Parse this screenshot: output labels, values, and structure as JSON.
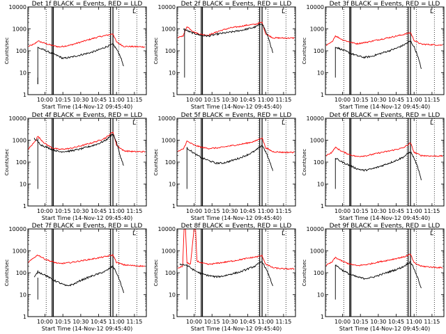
{
  "figure": {
    "ylabel": "Counts/sec",
    "xlabel": "Start Time (14-Nov-12 09:45:40)",
    "legend_marker": "L",
    "colors": {
      "events": "#000000",
      "lld": "#ff0000"
    }
  },
  "panel_titles": [
    "Det 1f  BLACK = Events,  RED = LLD",
    "Det 2f  BLACK = Events,  RED = LLD",
    "Det 3f  BLACK = Events,  RED = LLD",
    "Det 4f  BLACK = Events,  RED = LLD",
    "Det 5f  BLACK = Events,  RED = LLD",
    "Det 6f  BLACK = Events,  RED = LLD",
    "Det 7f  BLACK = Events,  RED = LLD",
    "Det 8f  BLACK = Events,  RED = LLD",
    "Det 9f  BLACK = Events,  RED = LLD"
  ],
  "chart_data": {
    "type": "line",
    "layout": "3x3 grid",
    "x_ticks": [
      "10:00",
      "10:15",
      "10:30",
      "10:45",
      "11:00",
      "11:15"
    ],
    "xlim": [
      "09:45:40",
      "11:25"
    ],
    "y_scale": "log",
    "ylim": [
      1,
      10000
    ],
    "y_ticks": [
      "1",
      "10",
      "100",
      "1000",
      "10000"
    ],
    "solid_vlines": [
      "10:06",
      "10:07",
      "10:55",
      "10:57"
    ],
    "dotted_vlines": [
      "10:01",
      "10:54",
      "11:02",
      "11:17"
    ],
    "series_names": [
      "Events",
      "LLD"
    ],
    "panels": [
      {
        "title": "Det 1f",
        "events_start": "09:54",
        "events_end": "11:06",
        "events": [
          [
            9.9,
            3
          ],
          [
            9.9,
            140
          ],
          [
            10.0,
            105
          ],
          [
            10.1,
            75
          ],
          [
            10.2,
            55
          ],
          [
            10.25,
            45
          ],
          [
            10.35,
            50
          ],
          [
            10.5,
            65
          ],
          [
            10.65,
            85
          ],
          [
            10.75,
            110
          ],
          [
            10.85,
            150
          ],
          [
            10.95,
            200
          ],
          [
            11.0,
            120
          ],
          [
            11.05,
            60
          ],
          [
            11.1,
            20
          ]
        ],
        "lld": [
          [
            9.77,
            160
          ],
          [
            9.85,
            200
          ],
          [
            9.9,
            280
          ],
          [
            10.0,
            220
          ],
          [
            10.1,
            175
          ],
          [
            10.2,
            150
          ],
          [
            10.35,
            180
          ],
          [
            10.5,
            250
          ],
          [
            10.65,
            350
          ],
          [
            10.75,
            430
          ],
          [
            10.85,
            500
          ],
          [
            10.95,
            600
          ],
          [
            11.0,
            250
          ],
          [
            11.1,
            160
          ],
          [
            11.25,
            155
          ],
          [
            11.4,
            150
          ]
        ]
      },
      {
        "title": "Det 2f",
        "events_start": "09:52",
        "events_end": "11:06",
        "events": [
          [
            9.85,
            1000
          ],
          [
            9.95,
            700
          ],
          [
            10.1,
            500
          ],
          [
            10.2,
            470
          ],
          [
            10.35,
            600
          ],
          [
            10.5,
            700
          ],
          [
            10.65,
            850
          ],
          [
            10.75,
            1000
          ],
          [
            10.85,
            1200
          ],
          [
            10.95,
            1800
          ],
          [
            11.0,
            800
          ],
          [
            11.05,
            300
          ],
          [
            11.1,
            80
          ]
        ],
        "lld": [
          [
            9.77,
            380
          ],
          [
            9.85,
            500
          ],
          [
            9.9,
            1300
          ],
          [
            10.0,
            700
          ],
          [
            10.1,
            560
          ],
          [
            10.2,
            520
          ],
          [
            10.35,
            800
          ],
          [
            10.5,
            1100
          ],
          [
            10.65,
            1300
          ],
          [
            10.75,
            1500
          ],
          [
            10.85,
            1600
          ],
          [
            10.95,
            2000
          ],
          [
            11.0,
            600
          ],
          [
            11.1,
            390
          ],
          [
            11.25,
            380
          ],
          [
            11.4,
            380
          ]
        ]
      },
      {
        "title": "Det 3f",
        "events_start": "09:54",
        "events_end": "11:06",
        "events": [
          [
            9.9,
            150
          ],
          [
            10.0,
            110
          ],
          [
            10.1,
            80
          ],
          [
            10.2,
            60
          ],
          [
            10.3,
            50
          ],
          [
            10.4,
            55
          ],
          [
            10.5,
            70
          ],
          [
            10.65,
            100
          ],
          [
            10.75,
            130
          ],
          [
            10.85,
            180
          ],
          [
            10.95,
            280
          ],
          [
            11.0,
            150
          ],
          [
            11.05,
            60
          ],
          [
            11.1,
            15
          ]
        ],
        "lld": [
          [
            9.77,
            170
          ],
          [
            9.85,
            250
          ],
          [
            9.9,
            480
          ],
          [
            10.0,
            320
          ],
          [
            10.1,
            250
          ],
          [
            10.2,
            210
          ],
          [
            10.35,
            250
          ],
          [
            10.5,
            320
          ],
          [
            10.65,
            400
          ],
          [
            10.75,
            470
          ],
          [
            10.85,
            550
          ],
          [
            10.95,
            680
          ],
          [
            11.0,
            300
          ],
          [
            11.1,
            200
          ],
          [
            11.25,
            190
          ],
          [
            11.4,
            180
          ]
        ]
      },
      {
        "title": "Det 4f",
        "events_start": "09:54",
        "events_end": "11:06",
        "events": [
          [
            9.85,
            1200
          ],
          [
            9.95,
            600
          ],
          [
            10.1,
            380
          ],
          [
            10.2,
            300
          ],
          [
            10.35,
            320
          ],
          [
            10.5,
            400
          ],
          [
            10.65,
            550
          ],
          [
            10.75,
            700
          ],
          [
            10.85,
            1000
          ],
          [
            10.95,
            2000
          ],
          [
            11.0,
            800
          ],
          [
            11.05,
            200
          ],
          [
            11.1,
            70
          ]
        ],
        "lld": [
          [
            9.77,
            400
          ],
          [
            9.85,
            800
          ],
          [
            9.9,
            1500
          ],
          [
            10.0,
            700
          ],
          [
            10.1,
            450
          ],
          [
            10.2,
            380
          ],
          [
            10.35,
            420
          ],
          [
            10.5,
            550
          ],
          [
            10.65,
            750
          ],
          [
            10.75,
            950
          ],
          [
            10.85,
            1300
          ],
          [
            10.95,
            2400
          ],
          [
            11.0,
            600
          ],
          [
            11.1,
            330
          ],
          [
            11.25,
            300
          ],
          [
            11.4,
            300
          ]
        ]
      },
      {
        "title": "Det 5f",
        "events_start": "09:54",
        "events_end": "11:06",
        "events": [
          [
            9.9,
            450
          ],
          [
            10.0,
            250
          ],
          [
            10.1,
            160
          ],
          [
            10.2,
            120
          ],
          [
            10.3,
            90
          ],
          [
            10.4,
            90
          ],
          [
            10.5,
            110
          ],
          [
            10.65,
            160
          ],
          [
            10.75,
            220
          ],
          [
            10.85,
            320
          ],
          [
            10.95,
            600
          ],
          [
            11.0,
            300
          ],
          [
            11.05,
            120
          ],
          [
            11.1,
            40
          ]
        ],
        "lld": [
          [
            9.77,
            300
          ],
          [
            9.85,
            400
          ],
          [
            9.9,
            900
          ],
          [
            10.0,
            600
          ],
          [
            10.1,
            480
          ],
          [
            10.2,
            420
          ],
          [
            10.35,
            450
          ],
          [
            10.5,
            550
          ],
          [
            10.65,
            650
          ],
          [
            10.75,
            750
          ],
          [
            10.85,
            900
          ],
          [
            10.95,
            1300
          ],
          [
            11.0,
            450
          ],
          [
            11.1,
            300
          ],
          [
            11.25,
            280
          ],
          [
            11.4,
            280
          ]
        ]
      },
      {
        "title": "Det 6f",
        "events_start": "09:54",
        "events_end": "11:06",
        "events": [
          [
            9.9,
            150
          ],
          [
            10.0,
            100
          ],
          [
            10.1,
            70
          ],
          [
            10.2,
            50
          ],
          [
            10.3,
            42
          ],
          [
            10.4,
            48
          ],
          [
            10.5,
            60
          ],
          [
            10.65,
            90
          ],
          [
            10.75,
            120
          ],
          [
            10.85,
            170
          ],
          [
            10.95,
            300
          ],
          [
            11.0,
            150
          ],
          [
            11.05,
            60
          ],
          [
            11.1,
            15
          ]
        ],
        "lld": [
          [
            9.77,
            200
          ],
          [
            9.85,
            280
          ],
          [
            9.9,
            470
          ],
          [
            10.0,
            300
          ],
          [
            10.1,
            220
          ],
          [
            10.2,
            180
          ],
          [
            10.35,
            200
          ],
          [
            10.5,
            260
          ],
          [
            10.65,
            320
          ],
          [
            10.75,
            380
          ],
          [
            10.85,
            450
          ],
          [
            10.95,
            750
          ],
          [
            11.0,
            280
          ],
          [
            11.1,
            200
          ],
          [
            11.25,
            190
          ],
          [
            11.4,
            190
          ]
        ]
      },
      {
        "title": "Det 7f",
        "events_start": "09:54",
        "events_end": "11:06",
        "events": [
          [
            9.85,
            60
          ],
          [
            9.9,
            110
          ],
          [
            10.0,
            80
          ],
          [
            10.1,
            50
          ],
          [
            10.2,
            35
          ],
          [
            10.3,
            25
          ],
          [
            10.4,
            30
          ],
          [
            10.5,
            45
          ],
          [
            10.65,
            70
          ],
          [
            10.75,
            90
          ],
          [
            10.85,
            120
          ],
          [
            10.95,
            200
          ],
          [
            11.0,
            100
          ],
          [
            11.05,
            40
          ],
          [
            11.1,
            12
          ]
        ],
        "lld": [
          [
            9.77,
            300
          ],
          [
            9.85,
            500
          ],
          [
            9.9,
            650
          ],
          [
            10.0,
            420
          ],
          [
            10.1,
            320
          ],
          [
            10.2,
            260
          ],
          [
            10.35,
            290
          ],
          [
            10.5,
            350
          ],
          [
            10.65,
            420
          ],
          [
            10.75,
            480
          ],
          [
            10.85,
            550
          ],
          [
            10.95,
            650
          ],
          [
            11.0,
            300
          ],
          [
            11.1,
            230
          ],
          [
            11.25,
            210
          ],
          [
            11.4,
            200
          ]
        ]
      },
      {
        "title": "Det 8f",
        "events_start": "09:54",
        "events_end": "11:06",
        "events": [
          [
            9.8,
            250
          ],
          [
            9.9,
            220
          ],
          [
            10.0,
            130
          ],
          [
            10.1,
            90
          ],
          [
            10.2,
            75
          ],
          [
            10.3,
            65
          ],
          [
            10.4,
            70
          ],
          [
            10.5,
            85
          ],
          [
            10.65,
            110
          ],
          [
            10.75,
            150
          ],
          [
            10.85,
            200
          ],
          [
            10.95,
            330
          ],
          [
            11.0,
            160
          ],
          [
            11.05,
            70
          ],
          [
            11.1,
            25
          ]
        ],
        "lld": [
          [
            9.77,
            160
          ],
          [
            9.84,
            200
          ],
          [
            9.86,
            10000
          ],
          [
            9.88,
            10000
          ],
          [
            9.9,
            280
          ],
          [
            9.95,
            250
          ],
          [
            10.0,
            10000
          ],
          [
            10.02,
            10000
          ],
          [
            10.04,
            350
          ],
          [
            10.1,
            280
          ],
          [
            10.2,
            240
          ],
          [
            10.35,
            280
          ],
          [
            10.5,
            330
          ],
          [
            10.65,
            400
          ],
          [
            10.75,
            460
          ],
          [
            10.85,
            520
          ],
          [
            10.95,
            600
          ],
          [
            11.0,
            250
          ],
          [
            11.1,
            170
          ],
          [
            11.25,
            150
          ],
          [
            11.4,
            150
          ]
        ]
      },
      {
        "title": "Det 9f",
        "events_start": "09:54",
        "events_end": "11:06",
        "events": [
          [
            9.9,
            230
          ],
          [
            10.0,
            130
          ],
          [
            10.1,
            85
          ],
          [
            10.2,
            65
          ],
          [
            10.3,
            55
          ],
          [
            10.4,
            60
          ],
          [
            10.5,
            75
          ],
          [
            10.65,
            110
          ],
          [
            10.75,
            140
          ],
          [
            10.85,
            190
          ],
          [
            10.95,
            320
          ],
          [
            11.0,
            150
          ],
          [
            11.05,
            60
          ],
          [
            11.1,
            20
          ]
        ],
        "lld": [
          [
            9.77,
            220
          ],
          [
            9.85,
            300
          ],
          [
            9.9,
            500
          ],
          [
            10.0,
            330
          ],
          [
            10.1,
            250
          ],
          [
            10.2,
            210
          ],
          [
            10.35,
            240
          ],
          [
            10.5,
            310
          ],
          [
            10.65,
            380
          ],
          [
            10.75,
            450
          ],
          [
            10.85,
            520
          ],
          [
            10.95,
            700
          ],
          [
            11.0,
            280
          ],
          [
            11.1,
            200
          ],
          [
            11.25,
            180
          ],
          [
            11.4,
            170
          ]
        ]
      }
    ]
  }
}
